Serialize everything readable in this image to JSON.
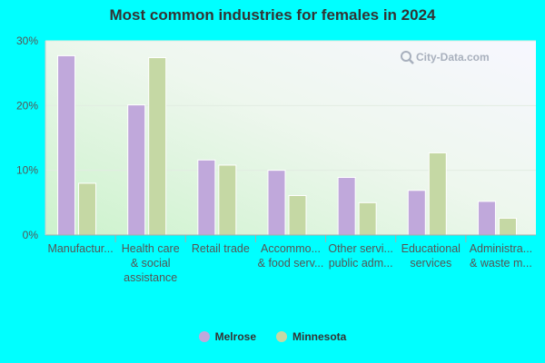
{
  "chart_data": {
    "type": "bar",
    "title": "Most common industries for females in 2024",
    "categories": [
      [
        "Manufactur..."
      ],
      [
        "Health care",
        "& social",
        "assistance"
      ],
      [
        "Retail trade"
      ],
      [
        "Accommo...",
        "& food serv..."
      ],
      [
        "Other servi...",
        "public adm..."
      ],
      [
        "Educational",
        "services"
      ],
      [
        "Administra...",
        "& waste m..."
      ]
    ],
    "series": [
      {
        "name": "Melrose",
        "color": "#c0a8db",
        "values": [
          27.7,
          20.1,
          11.6,
          10.0,
          8.9,
          6.9,
          5.2
        ]
      },
      {
        "name": "Minnesota",
        "color": "#c5d8a4",
        "values": [
          8.0,
          27.4,
          10.8,
          6.1,
          5.0,
          12.7,
          2.6
        ]
      }
    ],
    "yticks": [
      "0%",
      "10%",
      "20%",
      "30%"
    ],
    "ylim": [
      0,
      30
    ],
    "legend_position": "bottom",
    "grid": true
  },
  "watermark": {
    "text": "City-Data.com",
    "icon": "search-icon"
  }
}
